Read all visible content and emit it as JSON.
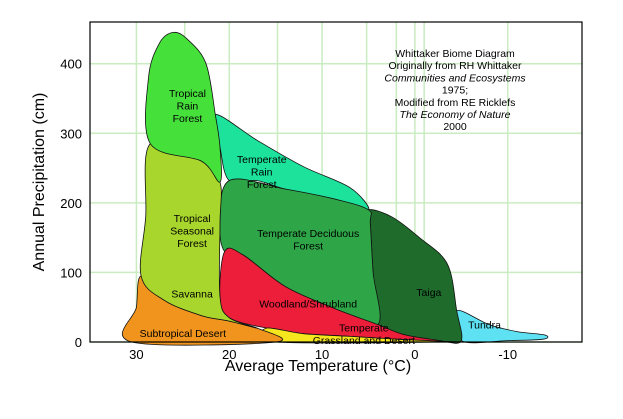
{
  "chart_data": {
    "type": "area",
    "xlabel": "Average Temperature (°C)",
    "ylabel": "Annual Precipitation (cm)",
    "xlim": [
      35,
      -18
    ],
    "ylim": [
      0,
      460
    ],
    "x_ticks": [
      30,
      20,
      10,
      0,
      -10
    ],
    "y_ticks": [
      0,
      100,
      200,
      300,
      400
    ],
    "x_tick_labels": [
      "30",
      "20",
      "10",
      "0",
      "-10"
    ],
    "y_tick_labels": [
      "0",
      "100",
      "200",
      "300",
      "400"
    ],
    "grid": true,
    "annotation": [
      {
        "text": "Whittaker Biome Diagram",
        "italic": false
      },
      {
        "text": "Originally from RH Whittaker",
        "italic": false
      },
      {
        "text": "Communities and Ecosystems",
        "italic": true
      },
      {
        "text": "1975;",
        "italic": false
      },
      {
        "text": "Modified from RE Ricklefs",
        "italic": false
      },
      {
        "text": "The Economy of Nature",
        "italic": true
      },
      {
        "text": "2000",
        "italic": false
      }
    ],
    "biomes": [
      {
        "name": "Tundra",
        "label_lines": [
          "Tundra"
        ],
        "color": "#5ee1f2",
        "label_at": [
          -7.5,
          25
        ],
        "points": [
          [
            -4.5,
            45
          ],
          [
            -8,
            25
          ],
          [
            -11,
            15
          ],
          [
            -14,
            10
          ],
          [
            -13.8,
            4
          ],
          [
            -10,
            2
          ],
          [
            -5,
            2
          ]
        ]
      },
      {
        "name": "Taiga",
        "label_lines": [
          "Taiga"
        ],
        "color": "#1f6b2c",
        "label_at": [
          -1.5,
          72
        ],
        "points": [
          [
            5,
            190
          ],
          [
            2.5,
            180
          ],
          [
            -0.5,
            150
          ],
          [
            -3.5,
            112
          ],
          [
            -4.5,
            45
          ],
          [
            -5,
            2
          ],
          [
            -3,
            1
          ],
          [
            1,
            10
          ],
          [
            4,
            25
          ],
          [
            4.5,
            100
          ],
          [
            4.8,
            170
          ]
        ]
      },
      {
        "name": "Temperate Rain Forest",
        "label_lines": [
          "Temperate",
          "Rain",
          "Forest"
        ],
        "color": "#1de29c",
        "label_at": [
          16.5,
          245
        ],
        "points": [
          [
            21.5,
            327
          ],
          [
            17,
            290
          ],
          [
            12,
            252
          ],
          [
            7,
            222
          ],
          [
            5,
            190
          ],
          [
            8.5,
            205
          ],
          [
            14,
            220
          ],
          [
            17,
            232
          ],
          [
            20,
            232
          ],
          [
            21,
            280
          ]
        ]
      },
      {
        "name": "Temperate Deciduous Forest",
        "label_lines": [
          "Temperate Deciduous",
          "Forest"
        ],
        "color": "#2ea647",
        "label_at": [
          11.5,
          148
        ],
        "points": [
          [
            20,
            232
          ],
          [
            14,
            220
          ],
          [
            8.5,
            205
          ],
          [
            5,
            190
          ],
          [
            4.8,
            170
          ],
          [
            4.5,
            100
          ],
          [
            4,
            25
          ],
          [
            9,
            50
          ],
          [
            14,
            80
          ],
          [
            18.5,
            125
          ],
          [
            20.5,
            130
          ],
          [
            21,
            170
          ]
        ]
      },
      {
        "name": "Woodland/Shrubland",
        "label_lines": [
          "Woodland/Shrubland"
        ],
        "color": "#ec1e3a",
        "label_at": [
          11.5,
          55
        ],
        "points": [
          [
            20.5,
            130
          ],
          [
            18.5,
            125
          ],
          [
            14,
            80
          ],
          [
            9,
            50
          ],
          [
            4,
            25
          ],
          [
            1,
            10
          ],
          [
            -3,
            1
          ],
          [
            2,
            4
          ],
          [
            7,
            8
          ],
          [
            12,
            12
          ],
          [
            16,
            20
          ],
          [
            20,
            35
          ],
          [
            21,
            65
          ]
        ]
      },
      {
        "name": "Temperate Grassland and Desert",
        "label_lines": [
          "Temperate",
          "Grassland and Desert"
        ],
        "color": "#f5e61e",
        "label_at": [
          5.5,
          12
        ],
        "points": [
          [
            16,
            20
          ],
          [
            12,
            12
          ],
          [
            7,
            8
          ],
          [
            2,
            4
          ],
          [
            -3,
            1
          ],
          [
            -3,
            0
          ],
          [
            15,
            0
          ]
        ]
      },
      {
        "name": "Subtropical Desert",
        "label_lines": [
          "Subtropical Desert"
        ],
        "color": "#f0941e",
        "label_at": [
          25,
          13
        ],
        "points": [
          [
            29.5,
            95
          ],
          [
            27,
            60
          ],
          [
            23,
            38
          ],
          [
            20,
            30
          ],
          [
            17,
            20
          ],
          [
            15,
            0
          ],
          [
            30.5,
            0
          ],
          [
            30,
            50
          ]
        ]
      },
      {
        "name": "Savanna",
        "label_lines": [
          "Savanna"
        ],
        "color": "#a8d62d",
        "label_at": [
          24,
          70
        ],
        "points": [
          [
            28.5,
            285
          ],
          [
            23,
            260
          ],
          [
            21,
            230
          ],
          [
            21,
            170
          ],
          [
            21,
            65
          ],
          [
            20,
            35
          ],
          [
            17,
            20
          ],
          [
            20,
            30
          ],
          [
            23,
            38
          ],
          [
            27,
            60
          ],
          [
            29.5,
            95
          ],
          [
            29,
            180
          ]
        ]
      },
      {
        "name": "Tropical Seasonal Forest",
        "label_lines": [
          "Tropical",
          "Seasonal",
          "Forest"
        ],
        "color": "#a8d62d",
        "label_at": [
          24,
          160
        ],
        "points": []
      },
      {
        "name": "Tropical Rain Forest",
        "label_lines": [
          "Tropical",
          "Rain",
          "Forest"
        ],
        "color": "#46e03b",
        "label_at": [
          24.5,
          340
        ],
        "points": [
          [
            28.5,
            285
          ],
          [
            28.7,
            380
          ],
          [
            27.5,
            430
          ],
          [
            26,
            445
          ],
          [
            24.5,
            435
          ],
          [
            22.5,
            400
          ],
          [
            21.5,
            327
          ],
          [
            21,
            280
          ],
          [
            21,
            230
          ],
          [
            23,
            260
          ]
        ]
      }
    ]
  }
}
